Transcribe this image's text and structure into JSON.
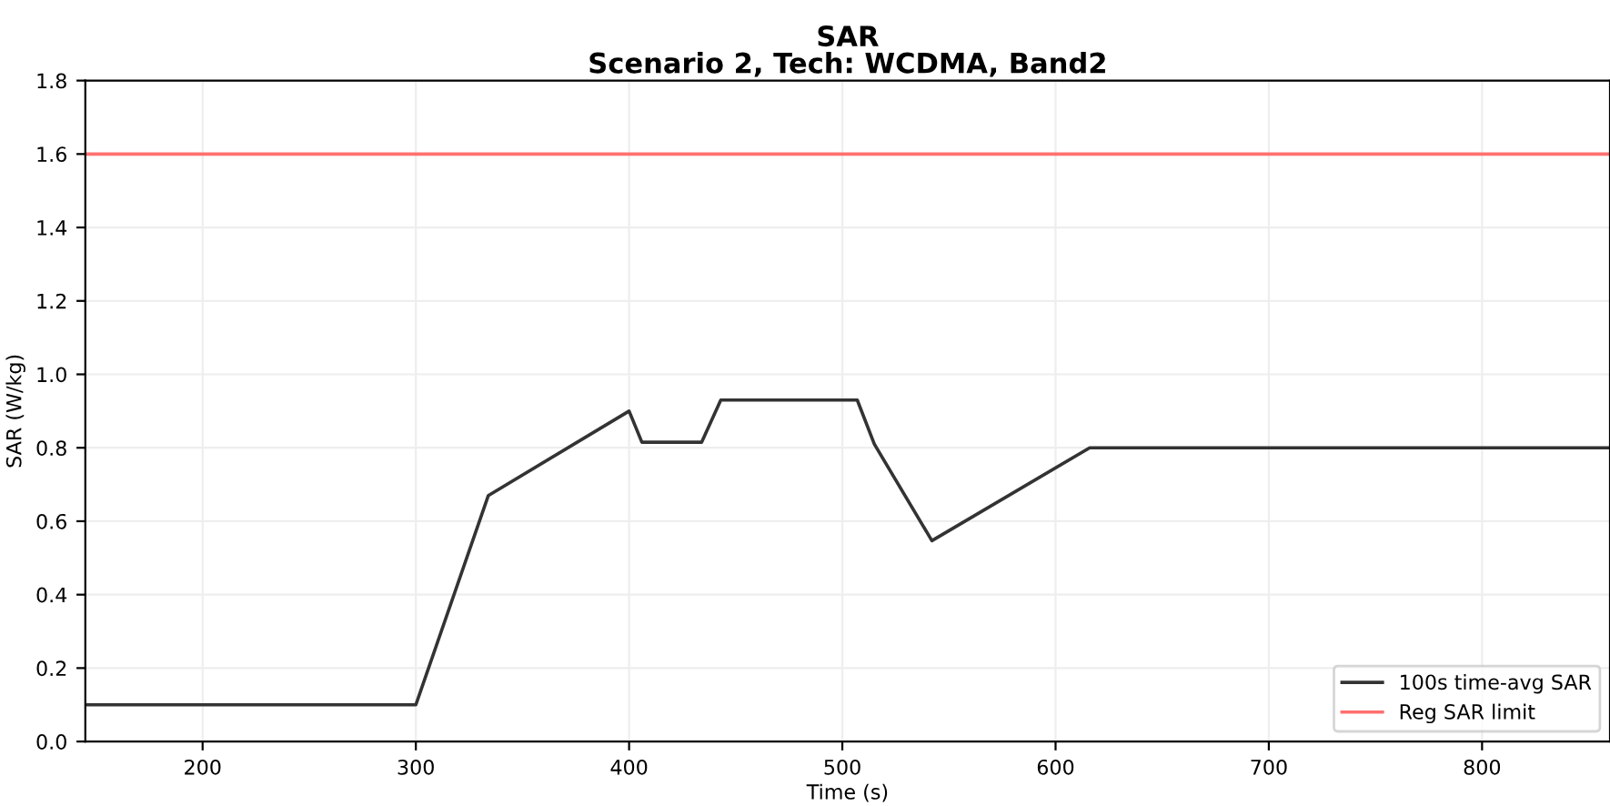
{
  "chart_data": {
    "type": "line",
    "title": "SAR\nScenario 2, Tech: WCDMA, Band2",
    "xlabel": "Time (s)",
    "ylabel": "SAR (W/kg)",
    "series": [
      {
        "name": "100s time-avg SAR",
        "color": "#333333",
        "x": [
          145,
          300,
          334,
          400,
          406,
          434,
          443,
          507,
          515,
          542,
          616,
          860
        ],
        "values": [
          0.1,
          0.1,
          0.67,
          0.9,
          0.815,
          0.815,
          0.93,
          0.93,
          0.81,
          0.547,
          0.8,
          0.8
        ]
      },
      {
        "name": "Reg SAR limit",
        "color": "#ff7070",
        "x": [
          145,
          860
        ],
        "values": [
          1.6,
          1.6
        ]
      }
    ],
    "xlim": [
      145,
      860
    ],
    "xticks": [
      200,
      300,
      400,
      500,
      600,
      700,
      800
    ],
    "ylim": [
      0,
      1.8
    ],
    "yticks": [
      {
        "value": 0,
        "label": "0.0"
      },
      0.2,
      0.4,
      0.6,
      0.8,
      {
        "value": 1,
        "label": "1.0"
      },
      1.2,
      1.4,
      1.6,
      1.8
    ],
    "grid": true,
    "legend": "bottom right",
    "line_style": "solid",
    "marker": "none"
  }
}
